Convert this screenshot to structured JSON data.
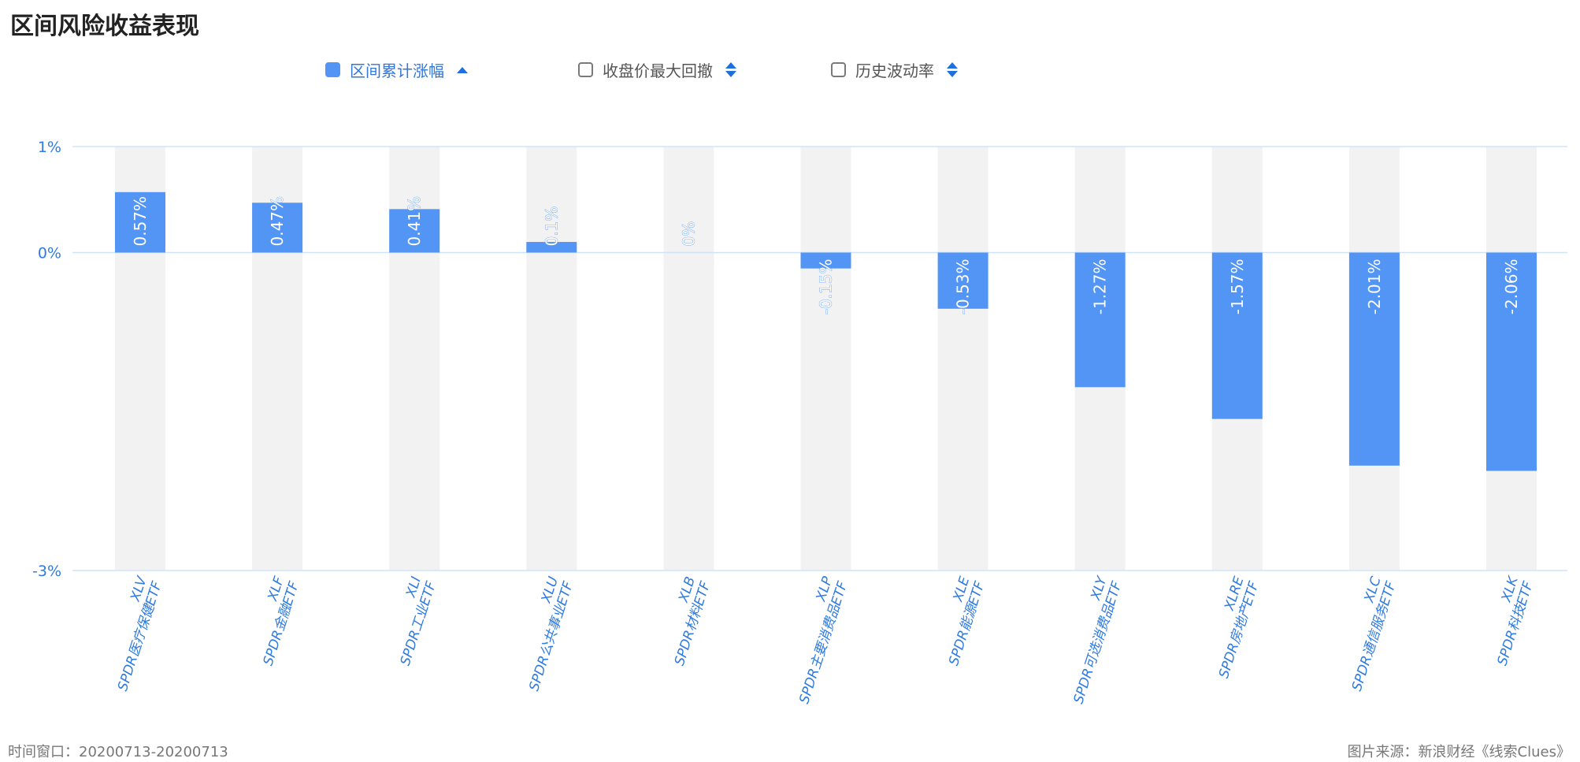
{
  "title": "区间风险收益表现",
  "controls": [
    {
      "label": "区间累计涨幅",
      "checked": true,
      "sort": "asc"
    },
    {
      "label": "收盘价最大回撤",
      "checked": false,
      "sort": "both"
    },
    {
      "label": "历史波动率",
      "checked": false,
      "sort": "both"
    }
  ],
  "footer": {
    "window": "时间窗口：20200713-20200713",
    "source": "图片来源：新浪财经《线索Clues》"
  },
  "colors": {
    "bar": "#5295f5",
    "band": "#f2f2f2",
    "axis_text": "#2f7be0",
    "grid": "#cfe3fb"
  },
  "chart_data": {
    "type": "bar",
    "title": "",
    "xlabel": "",
    "ylabel": "",
    "ylim": [
      -3,
      1
    ],
    "yticks": [
      1,
      0,
      -3
    ],
    "ytick_labels": [
      "1%",
      "0%",
      "-3%"
    ],
    "categories": [
      {
        "code": "XLV",
        "name": "SPDR医疗保健ETF"
      },
      {
        "code": "XLF",
        "name": "SPDR金融ETF"
      },
      {
        "code": "XLI",
        "name": "SPDR工业ETF"
      },
      {
        "code": "XLU",
        "name": "SPDR公共事业ETF"
      },
      {
        "code": "XLB",
        "name": "SPDR材料ETF"
      },
      {
        "code": "XLP",
        "name": "SPDR主要消费品ETF"
      },
      {
        "code": "XLE",
        "name": "SPDR能源ETF"
      },
      {
        "code": "XLY",
        "name": "SPDR可选消费品ETF"
      },
      {
        "code": "XLRE",
        "name": "SPDR房地产ETF"
      },
      {
        "code": "XLC",
        "name": "SPDR通信服务ETF"
      },
      {
        "code": "XLK",
        "name": "SPDR科技ETF"
      }
    ],
    "values": [
      0.57,
      0.47,
      0.41,
      0.1,
      0,
      -0.15,
      -0.53,
      -1.27,
      -1.57,
      -2.01,
      -2.06
    ],
    "value_labels": [
      "0.57%",
      "0.47%",
      "0.41%",
      "0.1%",
      "0%",
      "-0.15%",
      "-0.53%",
      "-1.27%",
      "-1.57%",
      "-2.01%",
      "-2.06%"
    ]
  }
}
